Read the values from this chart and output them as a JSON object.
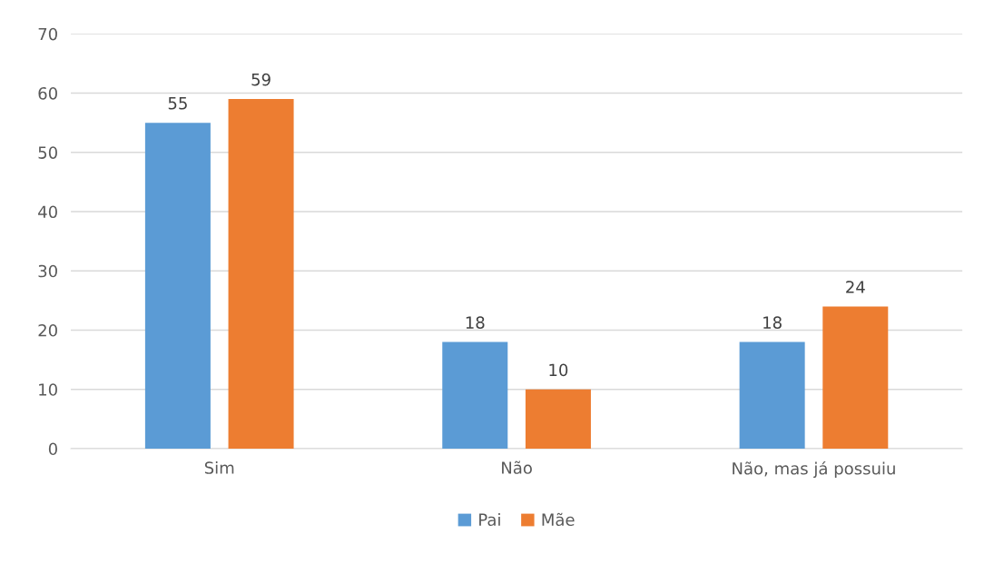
{
  "chart_data": {
    "type": "bar",
    "categories": [
      "Sim",
      "Não",
      "Não, mas já possuiu"
    ],
    "series": [
      {
        "name": "Pai",
        "color": "#5b9bd5",
        "values": [
          55,
          18,
          18
        ]
      },
      {
        "name": "Mãe",
        "color": "#ed7d31",
        "values": [
          59,
          10,
          24
        ]
      }
    ],
    "ylim": [
      0,
      70
    ],
    "yticks": [
      0,
      10,
      20,
      30,
      40,
      50,
      60,
      70
    ],
    "grid": "y",
    "legend": "bottom",
    "data_labels": true
  }
}
